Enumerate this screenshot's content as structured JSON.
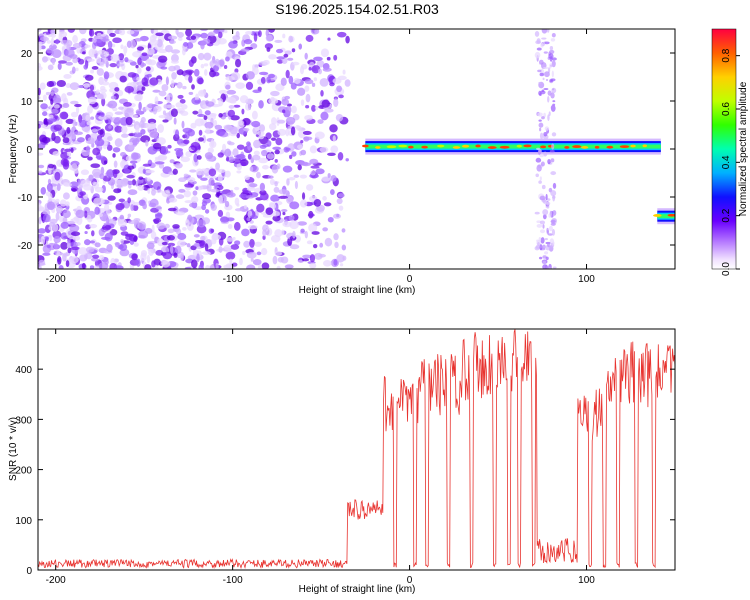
{
  "title": "S196.2025.154.02.51.R03",
  "chart_data": [
    {
      "type": "heatmap",
      "xlabel": "Height of straight line (km)",
      "ylabel": "Frequency (Hz)",
      "xlim": [
        -210,
        150
      ],
      "ylim": [
        -25,
        25
      ],
      "xticks": [
        -200,
        -100,
        0,
        100
      ],
      "yticks": [
        -20,
        -10,
        0,
        10,
        20
      ],
      "colorbar": {
        "label": "Normalized spectral amplitude",
        "range": [
          0,
          0.9
        ],
        "ticks": [
          "0.0",
          "0.2",
          "0.4",
          "0.6",
          "0.8"
        ]
      },
      "features": [
        {
          "kind": "noise",
          "x_range": [
            -210,
            -35
          ],
          "y_range": [
            -25,
            25
          ]
        },
        {
          "kind": "carrier",
          "x_range": [
            -25,
            142
          ],
          "frequency": 0.5
        },
        {
          "kind": "carrier",
          "x_range": [
            140,
            150
          ],
          "frequency": -14
        },
        {
          "kind": "dropout",
          "x_range": [
            72,
            82
          ]
        }
      ]
    },
    {
      "type": "line",
      "xlabel": "Height of straight line (km)",
      "ylabel": "SNR (10 * v/v)",
      "xlim": [
        -210,
        150
      ],
      "ylim": [
        0,
        480
      ],
      "xticks": [
        -200,
        -100,
        0,
        100
      ],
      "yticks": [
        0,
        100,
        200,
        300,
        400
      ],
      "series": [
        {
          "color": "#e8332f",
          "segments": [
            {
              "x": [
                -210,
                -35
              ],
              "level": 15
            },
            {
              "x": [
                -35,
                -15
              ],
              "level": 120
            },
            {
              "x": [
                -15,
                5
              ],
              "level": 330
            },
            {
              "x": [
                5,
                30
              ],
              "level": 370
            },
            {
              "x": [
                30,
                72
              ],
              "level": 410
            },
            {
              "x": [
                72,
                95
              ],
              "level": 45
            },
            {
              "x": [
                95,
                110
              ],
              "level": 310
            },
            {
              "x": [
                110,
                150
              ],
              "level": 390
            }
          ],
          "dropouts": [
            -8,
            3,
            10,
            22,
            35,
            48,
            56,
            62,
            70,
            102,
            110,
            118,
            128,
            138
          ]
        }
      ]
    }
  ]
}
